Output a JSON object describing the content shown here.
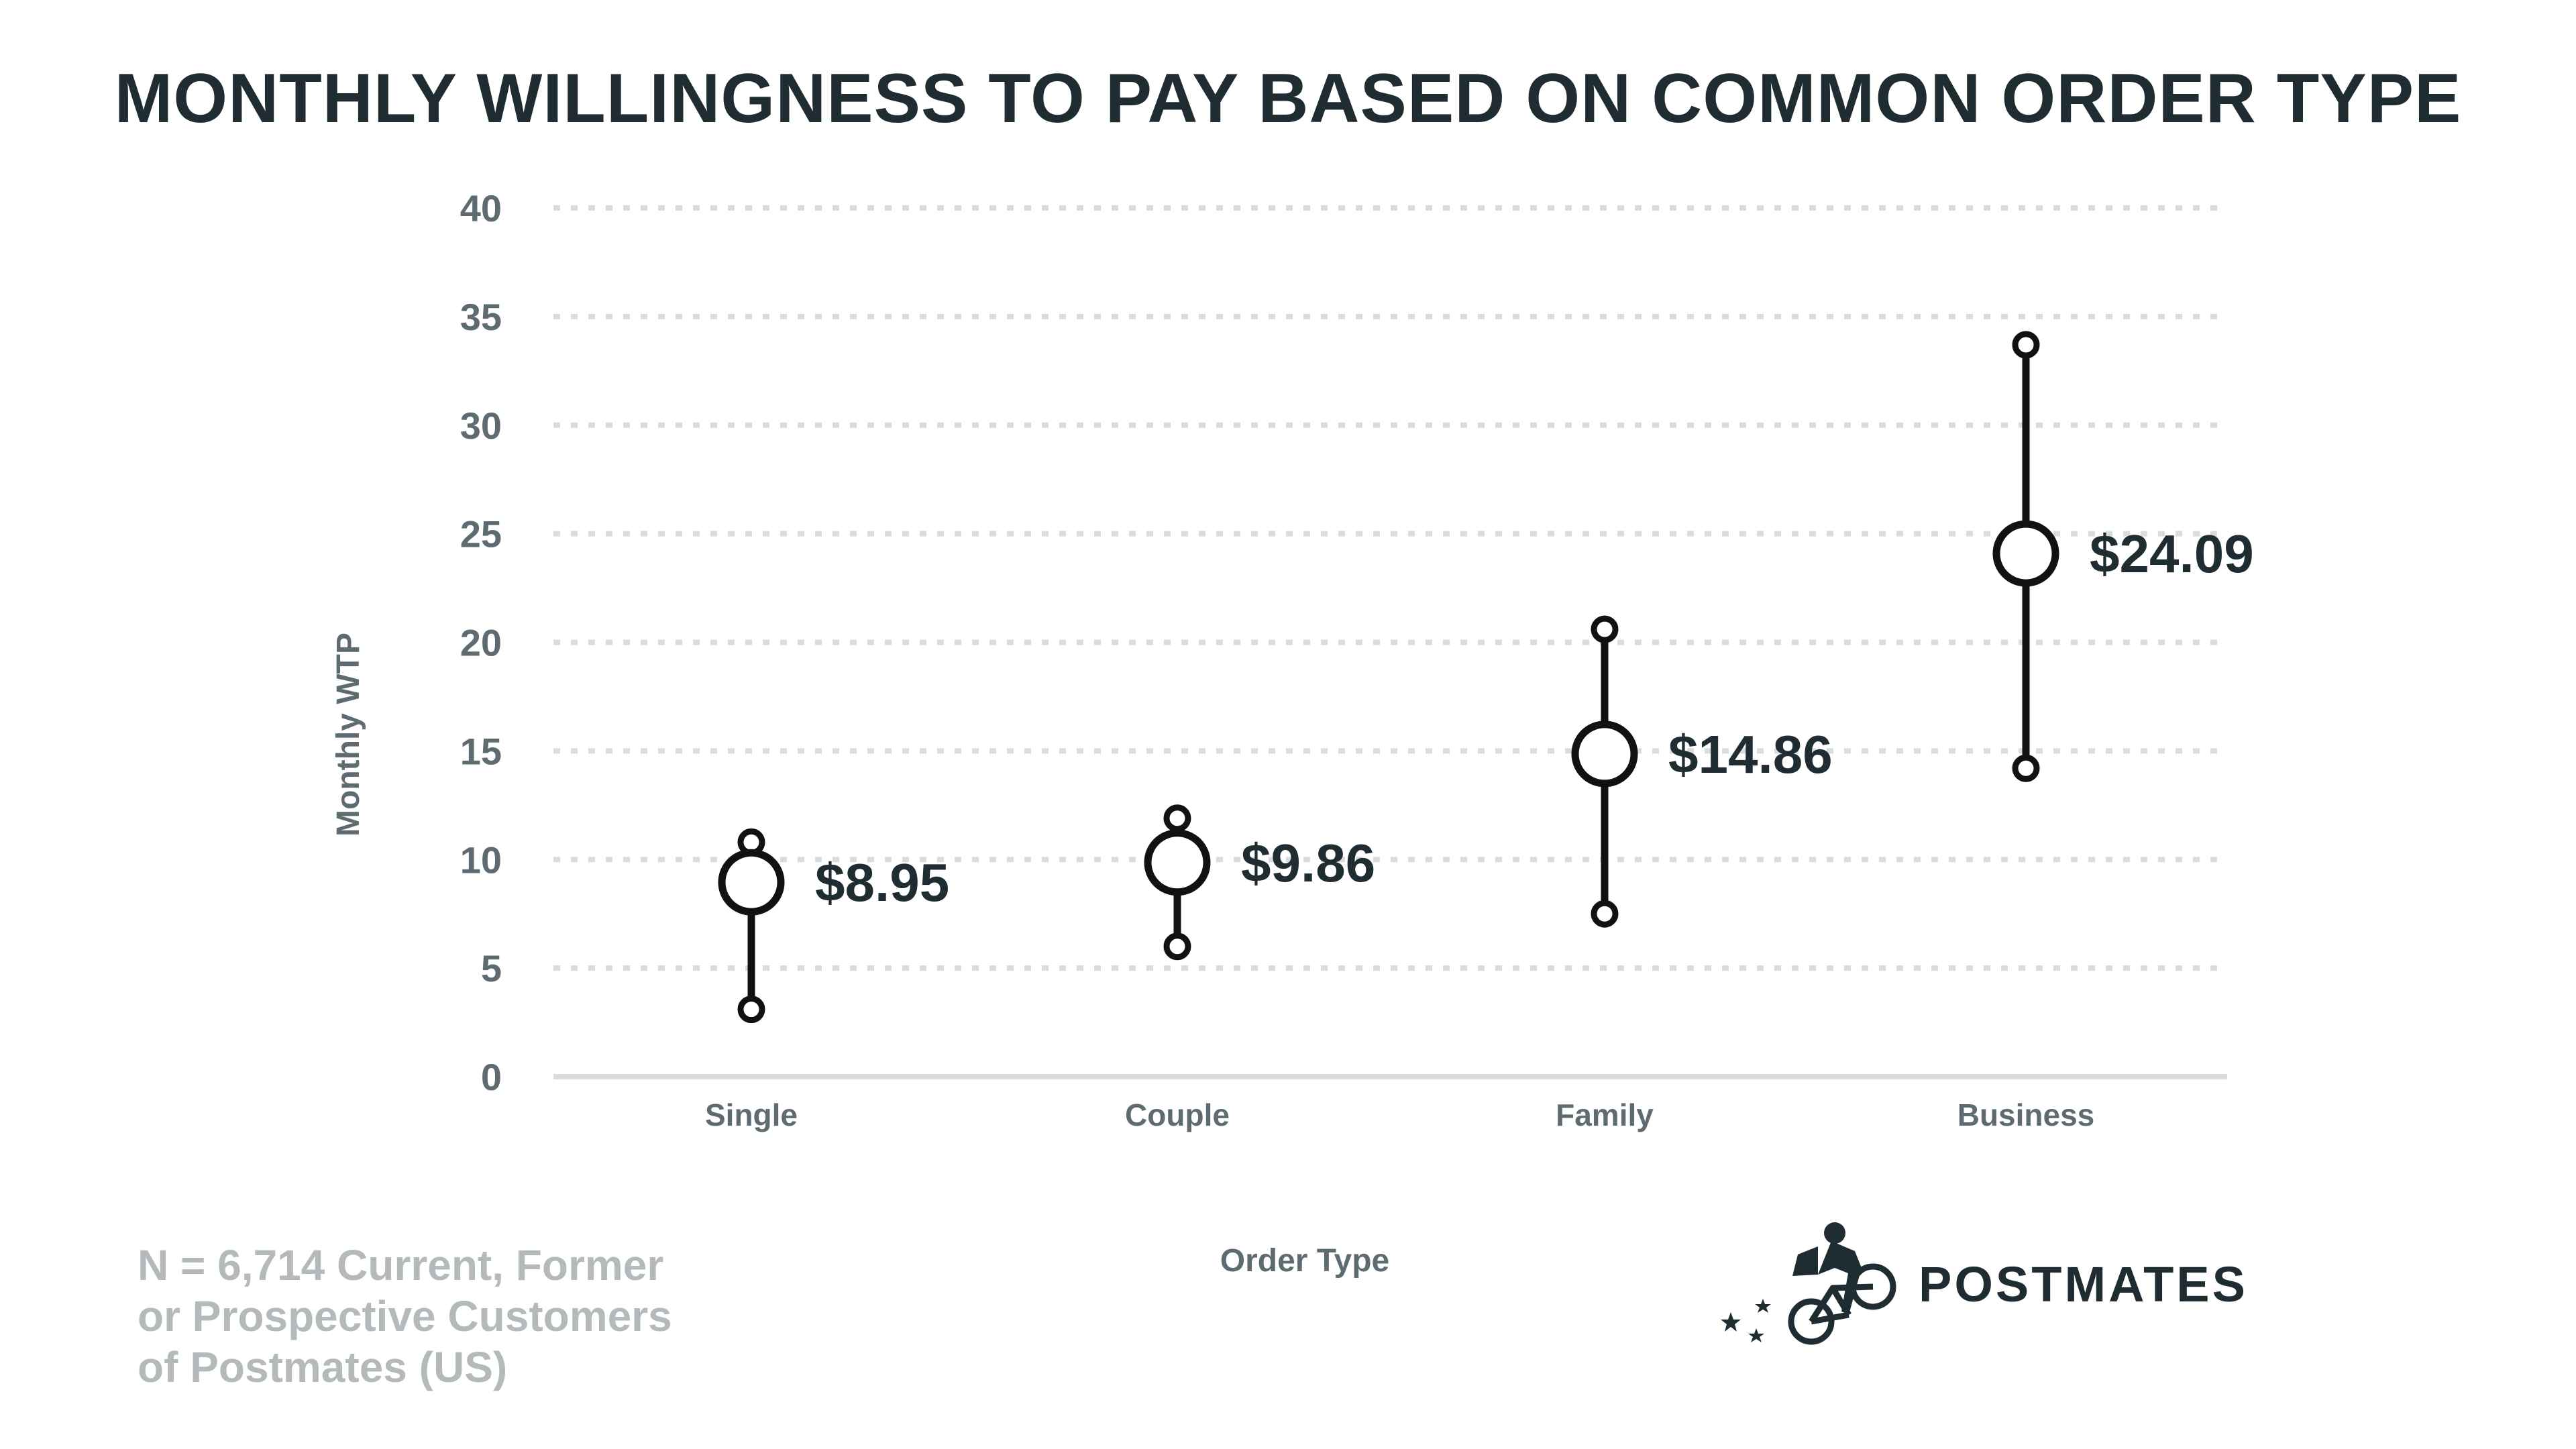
{
  "chart_data": {
    "type": "scatter",
    "title": "MONTHLY WILLINGNESS TO PAY BASED ON COMMON ORDER TYPE",
    "xlabel": "Order Type",
    "ylabel": "Monthly WTP",
    "ylim": [
      0,
      40
    ],
    "yticks": [
      "0",
      "5",
      "10",
      "15",
      "20",
      "25",
      "30",
      "35",
      "40"
    ],
    "grid": true,
    "categories": [
      "Single",
      "Couple",
      "Family",
      "Business"
    ],
    "values": [
      8.95,
      9.86,
      14.86,
      24.09
    ],
    "lower": [
      3.1,
      6.0,
      7.5,
      14.2
    ],
    "upper": [
      10.8,
      11.9,
      20.6,
      33.7
    ],
    "value_labels": [
      "$8.95",
      "$9.86",
      "$14.86",
      "$24.09"
    ]
  },
  "footnote": [
    "N = 6,714 Current, Former",
    "or Prospective Customers",
    "of Postmates (US)"
  ],
  "brand": {
    "name": "POSTMATES",
    "logo_icon": "courier-on-bicycle-icon"
  },
  "colors": {
    "title": "#1f2d33",
    "axis_text": "#5e6b70",
    "gridline": "#d9dcdd",
    "marker": "#111111",
    "footnote": "#b4b9bb"
  }
}
